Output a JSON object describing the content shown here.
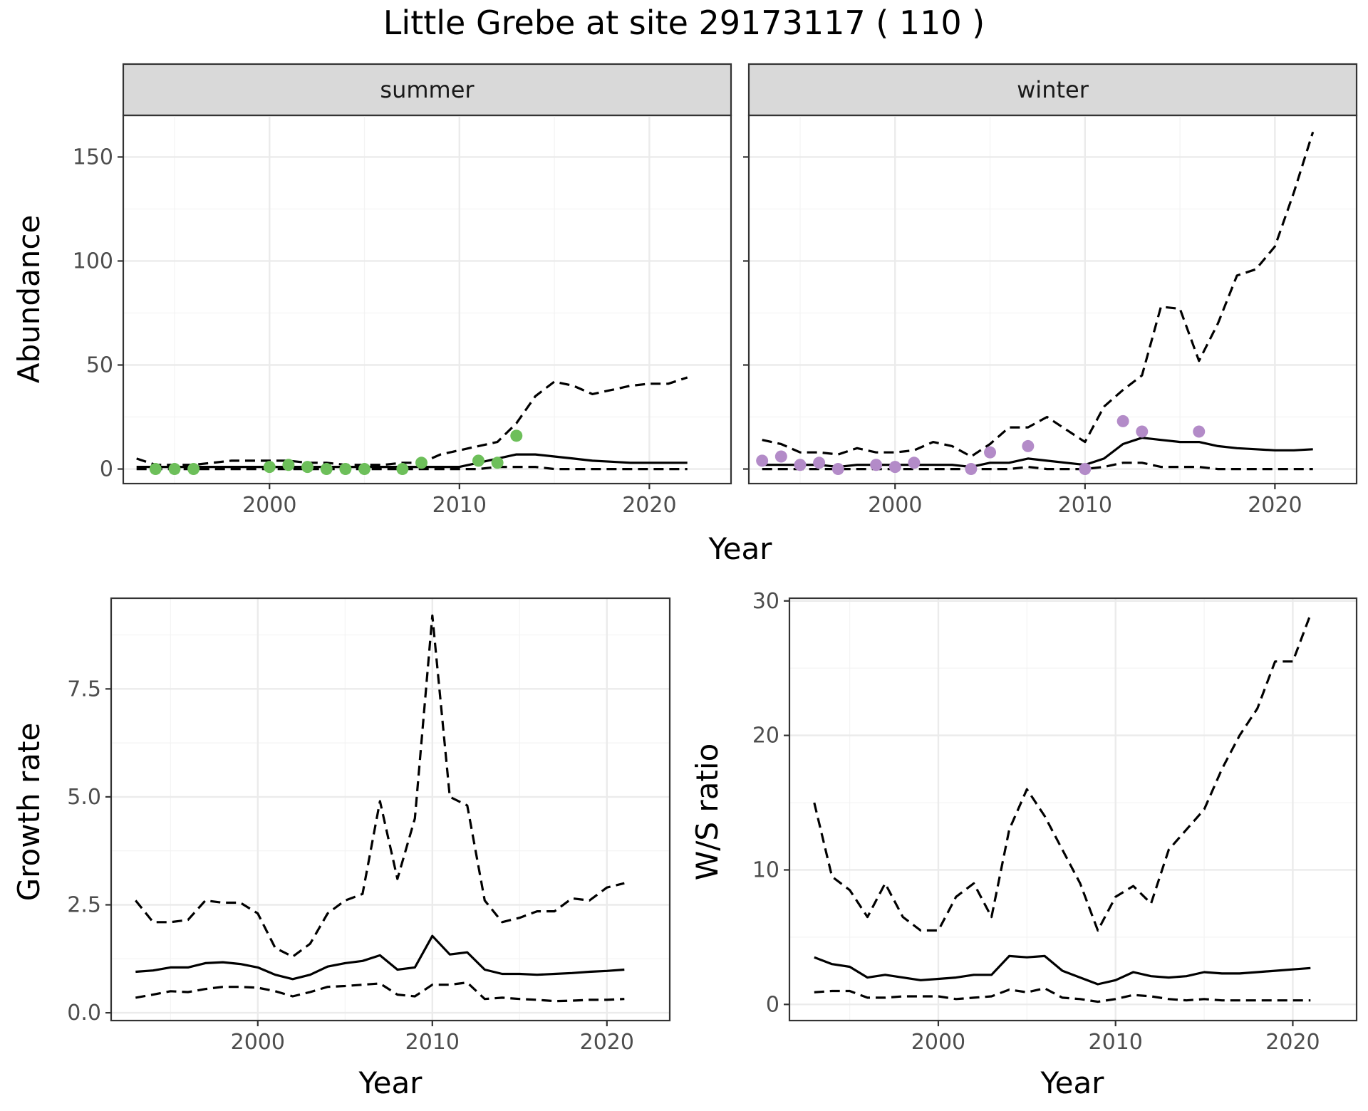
{
  "title": "Little Grebe at site 29173117 ( 110 )",
  "colors": {
    "summer_points": "#6dbf5a",
    "winter_points": "#b38bc8",
    "lines": "#000000"
  },
  "chart_data": [
    {
      "type": "line",
      "panel": "summer",
      "ylabel": "Abundance",
      "xlim": [
        1992.3,
        2024.3
      ],
      "ylim": [
        -7,
        170
      ],
      "x_ticks": [
        2000,
        2010,
        2020
      ],
      "y_ticks": [
        0,
        50,
        100,
        150
      ],
      "grid": true,
      "x": [
        1993,
        1994,
        1995,
        1996,
        1997,
        1998,
        1999,
        2000,
        2001,
        2002,
        2003,
        2004,
        2005,
        2006,
        2007,
        2008,
        2009,
        2010,
        2011,
        2012,
        2013,
        2014,
        2015,
        2016,
        2017,
        2018,
        2019,
        2020,
        2021,
        2022
      ],
      "series": [
        {
          "values": [
            1,
            1,
            1,
            1,
            1,
            1,
            1,
            1,
            1,
            1,
            1,
            1,
            1,
            1,
            1,
            1,
            1,
            1,
            3,
            5,
            7,
            7,
            6,
            5,
            4,
            3.5,
            3,
            3,
            3,
            3
          ]
        },
        {
          "values": [
            5,
            2,
            2,
            2,
            3,
            4,
            4,
            4,
            4,
            3,
            3,
            2,
            2,
            2,
            3,
            3,
            7,
            9,
            11,
            13,
            22,
            35,
            42,
            40,
            36,
            38,
            40,
            41,
            41,
            44
          ]
        },
        {
          "values": [
            0,
            0,
            0,
            0,
            0,
            0,
            0,
            0,
            0,
            0,
            0,
            0,
            0,
            0,
            0,
            0,
            0,
            0,
            0,
            1,
            1,
            1,
            0,
            0,
            0,
            0,
            0,
            0,
            0,
            0
          ]
        }
      ],
      "points": [
        {
          "x": 1994,
          "y": 0
        },
        {
          "x": 1995,
          "y": 0
        },
        {
          "x": 1996,
          "y": 0
        },
        {
          "x": 2000,
          "y": 1
        },
        {
          "x": 2001,
          "y": 2
        },
        {
          "x": 2002,
          "y": 1
        },
        {
          "x": 2003,
          "y": 0
        },
        {
          "x": 2004,
          "y": 0
        },
        {
          "x": 2005,
          "y": 0
        },
        {
          "x": 2007,
          "y": 0
        },
        {
          "x": 2008,
          "y": 3
        },
        {
          "x": 2011,
          "y": 4
        },
        {
          "x": 2012,
          "y": 3
        },
        {
          "x": 2013,
          "y": 16
        }
      ]
    },
    {
      "type": "line",
      "panel": "winter",
      "xlim": [
        1992.3,
        2024.3
      ],
      "ylim": [
        -7,
        170
      ],
      "x_ticks": [
        2000,
        2010,
        2020
      ],
      "y_ticks": [
        0,
        50,
        100,
        150
      ],
      "grid": true,
      "x": [
        1993,
        1994,
        1995,
        1996,
        1997,
        1998,
        1999,
        2000,
        2001,
        2002,
        2003,
        2004,
        2005,
        2006,
        2007,
        2008,
        2009,
        2010,
        2011,
        2012,
        2013,
        2014,
        2015,
        2016,
        2017,
        2018,
        2019,
        2020,
        2021,
        2022
      ],
      "series": [
        {
          "values": [
            2,
            2,
            2,
            2,
            1,
            2,
            2,
            2,
            2,
            2,
            2,
            1,
            3,
            3,
            5,
            4,
            3,
            2,
            5,
            12,
            15,
            14,
            13,
            13,
            11,
            10,
            9.5,
            9,
            9,
            9.5
          ]
        },
        {
          "values": [
            14,
            12,
            8,
            8,
            7,
            10,
            8,
            8,
            9,
            13,
            11,
            6,
            12,
            20,
            20,
            25,
            19,
            13,
            30,
            38,
            45,
            78,
            77,
            52,
            70,
            93,
            96,
            107,
            133,
            162
          ]
        },
        {
          "values": [
            0,
            0,
            0,
            0,
            0,
            0,
            0,
            0,
            0,
            0,
            0,
            0,
            0,
            0,
            1,
            0,
            0,
            0,
            1,
            3,
            3,
            1,
            1,
            1,
            0,
            0,
            0,
            0,
            0,
            0
          ]
        }
      ],
      "points": [
        {
          "x": 1993,
          "y": 4
        },
        {
          "x": 1994,
          "y": 6
        },
        {
          "x": 1995,
          "y": 2
        },
        {
          "x": 1996,
          "y": 3
        },
        {
          "x": 1997,
          "y": 0
        },
        {
          "x": 1999,
          "y": 2
        },
        {
          "x": 2000,
          "y": 1
        },
        {
          "x": 2001,
          "y": 3
        },
        {
          "x": 2004,
          "y": 0
        },
        {
          "x": 2005,
          "y": 8
        },
        {
          "x": 2007,
          "y": 11
        },
        {
          "x": 2010,
          "y": 0
        },
        {
          "x": 2012,
          "y": 23
        },
        {
          "x": 2013,
          "y": 18
        },
        {
          "x": 2016,
          "y": 18
        }
      ]
    },
    {
      "type": "line",
      "ylabel": "Growth rate",
      "xlim": [
        1991.6,
        2023.6
      ],
      "ylim": [
        -0.18,
        9.6
      ],
      "x_ticks": [
        2000,
        2010,
        2020
      ],
      "y_ticks": [
        0,
        2.5,
        5,
        7.5
      ],
      "grid": true,
      "x": [
        1993,
        1994,
        1995,
        1996,
        1997,
        1998,
        1999,
        2000,
        2001,
        2002,
        2003,
        2004,
        2005,
        2006,
        2007,
        2008,
        2009,
        2010,
        2011,
        2012,
        2013,
        2014,
        2015,
        2016,
        2017,
        2018,
        2019,
        2020,
        2021
      ],
      "series": [
        {
          "values": [
            0.95,
            0.98,
            1.05,
            1.05,
            1.15,
            1.17,
            1.13,
            1.05,
            0.88,
            0.78,
            0.88,
            1.07,
            1.15,
            1.2,
            1.33,
            1.0,
            1.05,
            1.78,
            1.35,
            1.4,
            1.0,
            0.9,
            0.9,
            0.88,
            0.9,
            0.92,
            0.95,
            0.97,
            1.0
          ]
        },
        {
          "values": [
            2.6,
            2.1,
            2.1,
            2.15,
            2.6,
            2.55,
            2.55,
            2.3,
            1.5,
            1.3,
            1.6,
            2.3,
            2.6,
            2.75,
            4.9,
            3.1,
            4.5,
            9.2,
            5.0,
            4.8,
            2.6,
            2.1,
            2.2,
            2.35,
            2.35,
            2.65,
            2.6,
            2.9,
            3.0
          ]
        },
        {
          "values": [
            0.35,
            0.42,
            0.5,
            0.48,
            0.55,
            0.6,
            0.6,
            0.58,
            0.5,
            0.38,
            0.48,
            0.6,
            0.62,
            0.65,
            0.68,
            0.42,
            0.38,
            0.65,
            0.65,
            0.7,
            0.32,
            0.35,
            0.32,
            0.3,
            0.27,
            0.28,
            0.3,
            0.3,
            0.32
          ]
        }
      ]
    },
    {
      "type": "line",
      "ylabel": "W/S ratio",
      "xlim": [
        1991.6,
        2023.6
      ],
      "ylim": [
        -1.2,
        30.2
      ],
      "x_ticks": [
        2000,
        2010,
        2020
      ],
      "y_ticks": [
        0,
        10,
        20,
        30
      ],
      "grid": true,
      "x": [
        1993,
        1994,
        1995,
        1996,
        1997,
        1998,
        1999,
        2000,
        2001,
        2002,
        2003,
        2004,
        2005,
        2006,
        2007,
        2008,
        2009,
        2010,
        2011,
        2012,
        2013,
        2014,
        2015,
        2016,
        2017,
        2018,
        2019,
        2020,
        2021
      ],
      "series": [
        {
          "values": [
            3.5,
            3.0,
            2.8,
            2.0,
            2.2,
            2.0,
            1.8,
            1.9,
            2.0,
            2.2,
            2.2,
            3.6,
            3.5,
            3.6,
            2.5,
            2.0,
            1.5,
            1.8,
            2.4,
            2.1,
            2.0,
            2.1,
            2.4,
            2.3,
            2.3,
            2.4,
            2.5,
            2.6,
            2.7
          ]
        },
        {
          "values": [
            15,
            9.5,
            8.5,
            6.5,
            9.0,
            6.5,
            5.5,
            5.5,
            8.0,
            9.0,
            6.5,
            13.0,
            16.0,
            14.0,
            11.5,
            9.0,
            5.5,
            8.0,
            8.8,
            7.5,
            11.5,
            13.0,
            14.5,
            17.5,
            20.0,
            22.0,
            25.5,
            25.5,
            29.0
          ]
        },
        {
          "values": [
            0.9,
            1.0,
            1.0,
            0.5,
            0.5,
            0.6,
            0.6,
            0.6,
            0.4,
            0.5,
            0.6,
            1.1,
            0.9,
            1.2,
            0.5,
            0.4,
            0.2,
            0.4,
            0.7,
            0.6,
            0.4,
            0.3,
            0.4,
            0.3,
            0.3,
            0.3,
            0.3,
            0.3,
            0.3
          ]
        }
      ]
    }
  ],
  "panels": {
    "summer_strip": "summer",
    "winter_strip": "winter",
    "top_xlabel": "Year",
    "bl_xlabel": "Year",
    "br_xlabel": "Year"
  }
}
